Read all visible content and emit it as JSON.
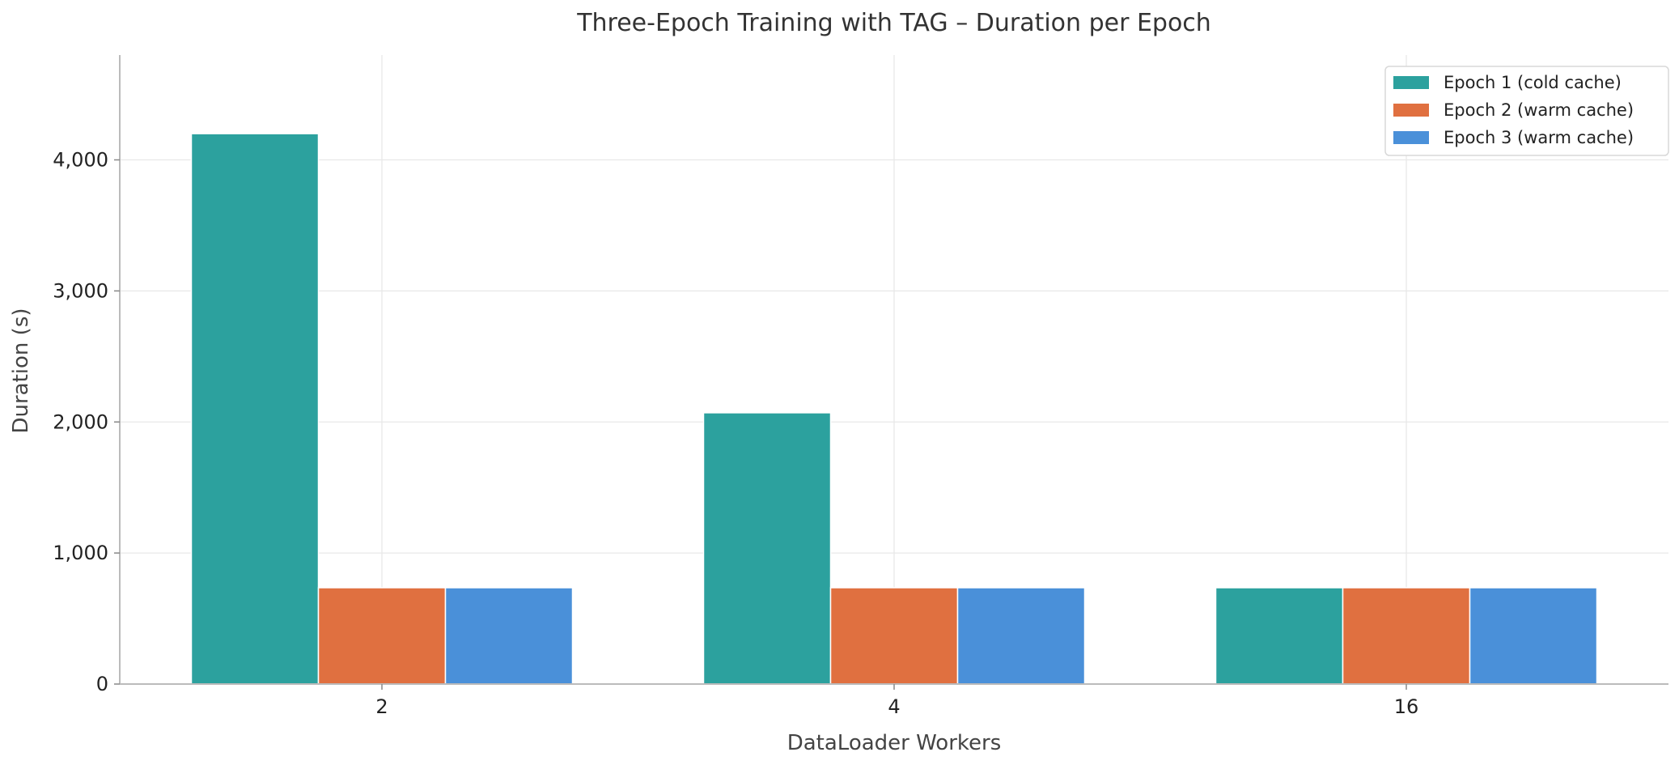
{
  "chart_data": {
    "type": "bar",
    "title": "Three-Epoch Training with TAG – Duration per Epoch",
    "xlabel": "DataLoader Workers",
    "ylabel": "Duration (s)",
    "categories": [
      "2",
      "4",
      "16"
    ],
    "series": [
      {
        "name": "Epoch 1 (cold cache)",
        "color": "#2ca19e",
        "values": [
          4200,
          2070,
          735
        ]
      },
      {
        "name": "Epoch 2 (warm cache)",
        "color": "#e07040",
        "values": [
          735,
          735,
          735
        ]
      },
      {
        "name": "Epoch 3 (warm cache)",
        "color": "#4a90d9",
        "values": [
          735,
          735,
          735
        ]
      }
    ],
    "ylim": [
      0,
      4800
    ],
    "yticks": [
      0,
      1000,
      2000,
      3000,
      4000
    ],
    "ytick_labels": [
      "0",
      "1,000",
      "2,000",
      "3,000",
      "4,000"
    ],
    "grid": true,
    "legend_position": "top-right"
  }
}
